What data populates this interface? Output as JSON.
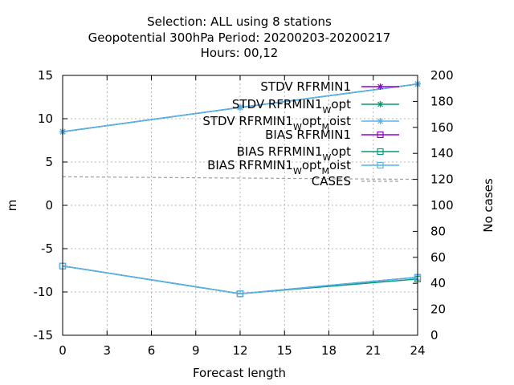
{
  "title_lines": [
    "Selection: ALL using     8 stations",
    "Geopotential 300hPa   Period: 20200203-20200217",
    "Hours:  00,12"
  ],
  "chart_data": {
    "type": "line",
    "xlabel": "Forecast length",
    "ylabel": "m",
    "y2label": "No cases",
    "xlim": [
      0,
      24
    ],
    "ylim": [
      -15,
      15
    ],
    "y2lim": [
      0,
      200
    ],
    "xticks": [
      0,
      3,
      6,
      9,
      12,
      15,
      18,
      21,
      24
    ],
    "yticks": [
      -15,
      -10,
      -5,
      0,
      5,
      10,
      15
    ],
    "y2ticks": [
      0,
      20,
      40,
      60,
      80,
      100,
      120,
      140,
      160,
      180,
      200
    ],
    "grid": true,
    "legend_position": "top-right",
    "series": [
      {
        "name": "STDV RFRMIN1",
        "sub": "",
        "name2": "",
        "sub2": "",
        "color": "#9400d3",
        "marker": "star",
        "axis": "y",
        "x": [
          0,
          12,
          24
        ],
        "values": [
          8.5,
          11.3,
          14.0
        ]
      },
      {
        "name": "STDV RFRMIN1",
        "sub": "W",
        "name2": "opt",
        "sub2": "",
        "color": "#009e73",
        "marker": "star",
        "axis": "y",
        "x": [
          0,
          12,
          24
        ],
        "values": [
          8.5,
          11.3,
          14.0
        ]
      },
      {
        "name": "STDV RFRMIN1",
        "sub": "W",
        "name2": "opt",
        "sub2": "M",
        "name3": "oist",
        "color": "#56b4e9",
        "marker": "star",
        "axis": "y",
        "x": [
          0,
          12,
          24
        ],
        "values": [
          8.5,
          11.3,
          14.0
        ]
      },
      {
        "name": "BIAS RFRMIN1",
        "sub": "",
        "name2": "",
        "sub2": "",
        "color": "#9400d3",
        "marker": "square",
        "axis": "y",
        "x": [
          0,
          12,
          24
        ],
        "values": [
          -7.0,
          -10.2,
          -8.3
        ]
      },
      {
        "name": "BIAS RFRMIN1",
        "sub": "W",
        "name2": "opt",
        "sub2": "",
        "color": "#009e73",
        "marker": "square",
        "axis": "y",
        "x": [
          0,
          12,
          24
        ],
        "values": [
          -7.0,
          -10.2,
          -8.5
        ]
      },
      {
        "name": "BIAS RFRMIN1",
        "sub": "W",
        "name2": "opt",
        "sub2": "M",
        "name3": "oist",
        "color": "#56b4e9",
        "marker": "square",
        "axis": "y",
        "x": [
          0,
          12,
          24
        ],
        "values": [
          -7.0,
          -10.2,
          -8.3
        ]
      },
      {
        "name": "CASES",
        "sub": "",
        "name2": "",
        "sub2": "",
        "color": "#a0a0a0",
        "marker": "none",
        "dashed": true,
        "axis": "y2",
        "x": [
          0,
          12,
          24
        ],
        "values": [
          122,
          121,
          120
        ]
      }
    ]
  }
}
